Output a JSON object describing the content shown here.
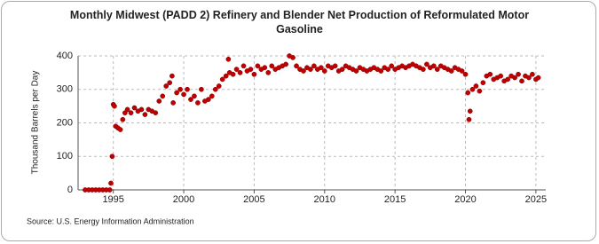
{
  "chart_data": {
    "type": "scatter",
    "title": "Monthly Midwest (PADD 2) Refinery and Blender Net Production of Reformulated Motor Gasoline",
    "ylabel": "Thousand Barrels per Day",
    "source": "Source: U.S. Energy Information Administration",
    "color": "#c00000",
    "grid": true,
    "xlim": [
      1992.5,
      2025.7
    ],
    "xticks": [
      1995,
      2000,
      2005,
      2010,
      2015,
      2020,
      2025
    ],
    "ylim": [
      0,
      400
    ],
    "yticks": [
      0,
      100,
      200,
      300,
      400
    ],
    "x": [
      1993.0,
      1993.25,
      1993.5,
      1993.75,
      1994.0,
      1994.25,
      1994.5,
      1994.75,
      1994.83,
      1994.92,
      1995.0,
      1995.08,
      1995.17,
      1995.33,
      1995.5,
      1995.67,
      1995.83,
      1996.0,
      1996.25,
      1996.5,
      1996.75,
      1997.0,
      1997.25,
      1997.5,
      1997.75,
      1998.0,
      1998.25,
      1998.5,
      1998.75,
      1999.0,
      1999.17,
      1999.25,
      1999.5,
      1999.75,
      2000.0,
      2000.25,
      2000.5,
      2000.75,
      2001.0,
      2001.25,
      2001.5,
      2001.75,
      2002.0,
      2002.25,
      2002.5,
      2002.75,
      2003.0,
      2003.17,
      2003.25,
      2003.5,
      2003.75,
      2004.0,
      2004.25,
      2004.5,
      2004.75,
      2005.0,
      2005.25,
      2005.5,
      2005.75,
      2006.0,
      2006.25,
      2006.5,
      2006.75,
      2007.0,
      2007.25,
      2007.5,
      2007.75,
      2008.0,
      2008.25,
      2008.5,
      2008.75,
      2009.0,
      2009.25,
      2009.5,
      2009.75,
      2010.0,
      2010.25,
      2010.5,
      2010.75,
      2011.0,
      2011.25,
      2011.5,
      2011.75,
      2012.0,
      2012.25,
      2012.5,
      2012.75,
      2013.0,
      2013.25,
      2013.5,
      2013.75,
      2014.0,
      2014.25,
      2014.5,
      2014.75,
      2015.0,
      2015.25,
      2015.5,
      2015.75,
      2016.0,
      2016.25,
      2016.5,
      2016.75,
      2017.0,
      2017.25,
      2017.5,
      2017.75,
      2018.0,
      2018.25,
      2018.5,
      2018.75,
      2019.0,
      2019.25,
      2019.5,
      2019.75,
      2020.0,
      2020.17,
      2020.25,
      2020.33,
      2020.5,
      2020.75,
      2021.0,
      2021.25,
      2021.5,
      2021.75,
      2022.0,
      2022.25,
      2022.5,
      2022.75,
      2023.0,
      2023.25,
      2023.5,
      2023.75,
      2024.0,
      2024.25,
      2024.5,
      2024.75,
      2025.0,
      2025.17
    ],
    "values": [
      0,
      0,
      0,
      0,
      0,
      0,
      0,
      0,
      20,
      100,
      255,
      250,
      190,
      185,
      180,
      210,
      230,
      240,
      230,
      245,
      235,
      240,
      225,
      240,
      235,
      230,
      265,
      280,
      310,
      320,
      340,
      260,
      290,
      300,
      285,
      300,
      270,
      280,
      260,
      300,
      265,
      270,
      280,
      300,
      310,
      330,
      340,
      390,
      350,
      345,
      360,
      350,
      370,
      355,
      360,
      345,
      370,
      360,
      365,
      350,
      370,
      360,
      365,
      370,
      375,
      400,
      395,
      370,
      360,
      355,
      365,
      360,
      370,
      360,
      365,
      355,
      370,
      365,
      370,
      355,
      360,
      370,
      365,
      360,
      355,
      365,
      360,
      355,
      360,
      365,
      360,
      355,
      365,
      360,
      370,
      360,
      365,
      370,
      365,
      370,
      375,
      370,
      365,
      360,
      375,
      365,
      370,
      360,
      370,
      365,
      360,
      355,
      365,
      360,
      355,
      345,
      290,
      210,
      235,
      300,
      310,
      295,
      320,
      340,
      345,
      330,
      335,
      340,
      325,
      330,
      340,
      335,
      345,
      325,
      340,
      335,
      345,
      330,
      335
    ]
  }
}
